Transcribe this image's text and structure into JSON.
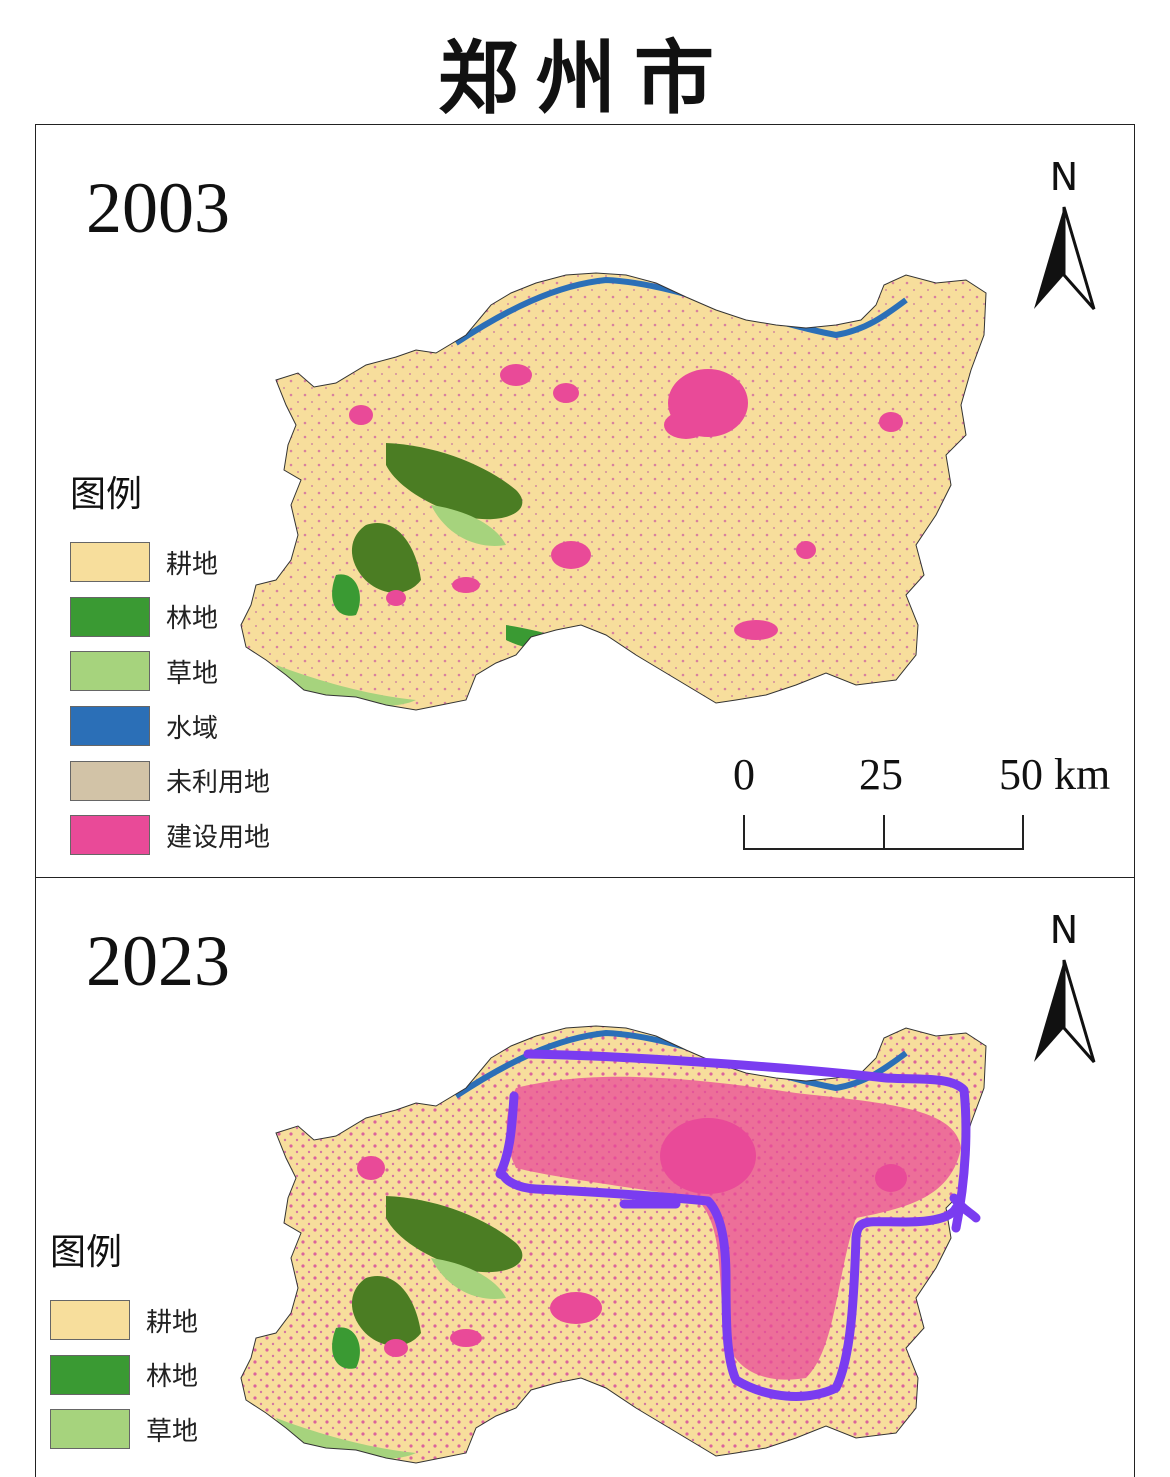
{
  "title": "郑州市",
  "legend": {
    "title": "图例",
    "items": [
      {
        "label": "耕地",
        "color": "#f7de9c"
      },
      {
        "label": "林地",
        "color": "#3a9a33"
      },
      {
        "label": "草地",
        "color": "#a6d37d"
      },
      {
        "label": "水域",
        "color": "#2b6fb7"
      },
      {
        "label": "未利用地",
        "color": "#d2c3a7"
      },
      {
        "label": "建设用地",
        "color": "#e94a98"
      }
    ]
  },
  "panels": [
    {
      "year": "2003",
      "north": "N"
    },
    {
      "year": "2023",
      "north": "N"
    }
  ],
  "scale": {
    "ticks": [
      "0",
      "25",
      "50 km"
    ]
  },
  "colors": {
    "cropland": "#f7de9c",
    "forest_dark": "#4b7d23",
    "forest": "#3a9a33",
    "grass": "#a6d37d",
    "water": "#2b6fb7",
    "urban": "#e94a98",
    "annotation": "#7a3cf0"
  }
}
